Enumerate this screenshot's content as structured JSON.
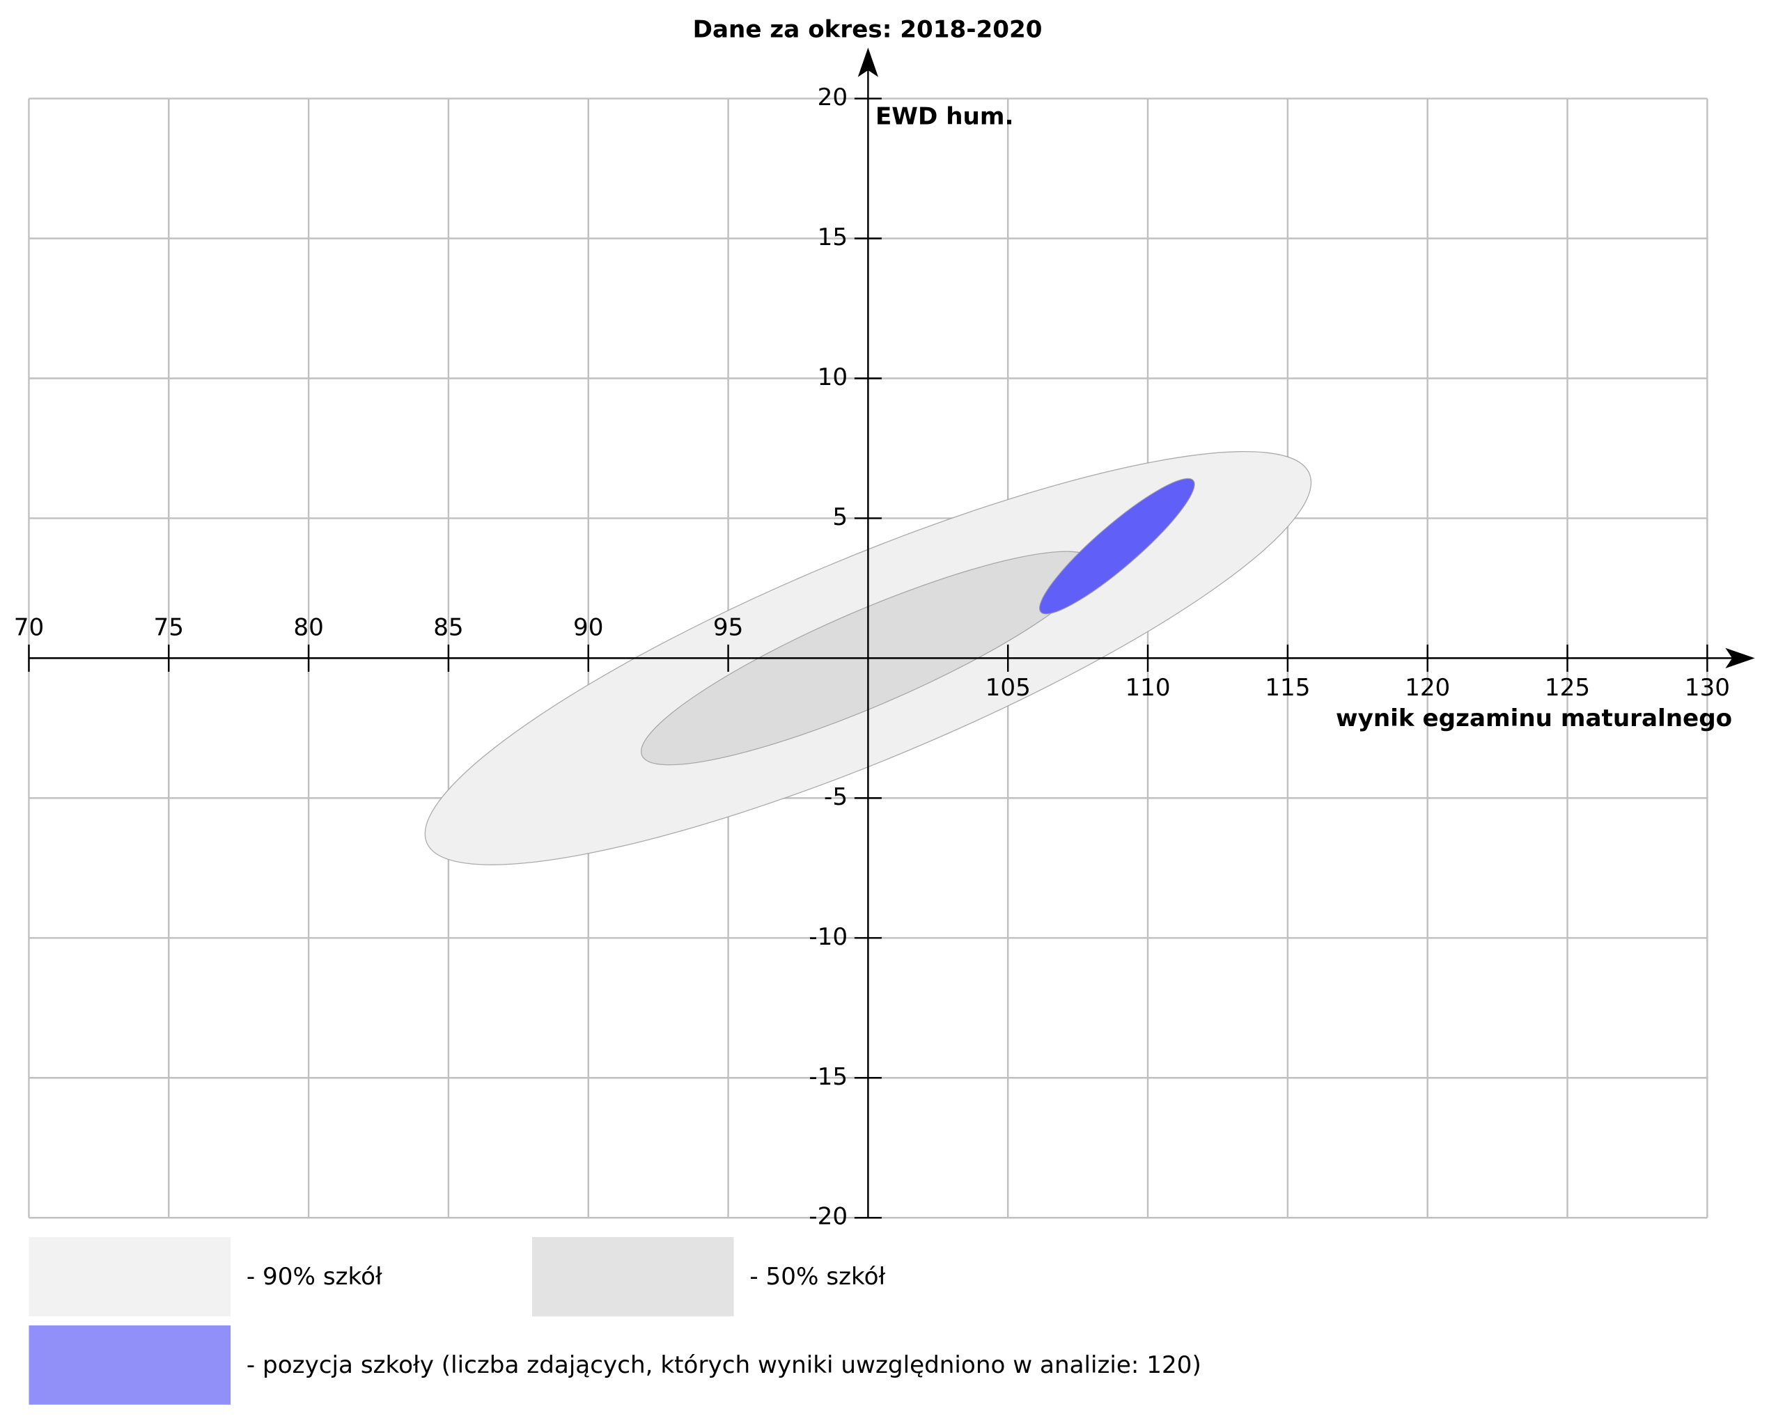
{
  "chart_data": {
    "type": "ellipse",
    "title": "Dane za okres: 2018-2020",
    "x_label": "wynik egzaminu maturalnego",
    "y_label": "EWD hum.",
    "xlim": [
      70,
      130
    ],
    "ylim": [
      -20,
      20
    ],
    "xticks": [
      70,
      75,
      80,
      85,
      90,
      95,
      105,
      110,
      115,
      120,
      125,
      130
    ],
    "yticks": [
      20,
      15,
      10,
      5,
      -5,
      -10,
      -15,
      -20
    ],
    "grid_x": [
      70,
      75,
      80,
      85,
      90,
      95,
      100,
      105,
      110,
      115,
      120,
      125,
      130
    ],
    "grid_y": [
      20,
      15,
      10,
      5,
      0,
      -5,
      -10,
      -15,
      -20
    ],
    "axis_origin": [
      100,
      0
    ],
    "grid": true,
    "series": [
      {
        "name": "- 90% szkół",
        "color": "#f0f0f0",
        "legend_color": "#f2f2f2",
        "cx": 100,
        "cy": 0,
        "rx": 17.1,
        "ry": 3.6,
        "angle": 22.7
      },
      {
        "name": "- 50% szkół",
        "color": "#dcdcdc",
        "legend_color": "#e3e3e3",
        "cx": 100,
        "cy": 0,
        "rx": 8.8,
        "ry": 1.7,
        "angle": 23.3
      },
      {
        "name": "- pozycja szkoły (liczba zdających, których wyniki uwzględniono w analizie: 120)",
        "color": "#6060f8",
        "legend_color": "#9090f8",
        "cx": 108.9,
        "cy": 4.0,
        "rx": 3.6,
        "ry": 0.75,
        "angle": 40.8
      }
    ]
  }
}
